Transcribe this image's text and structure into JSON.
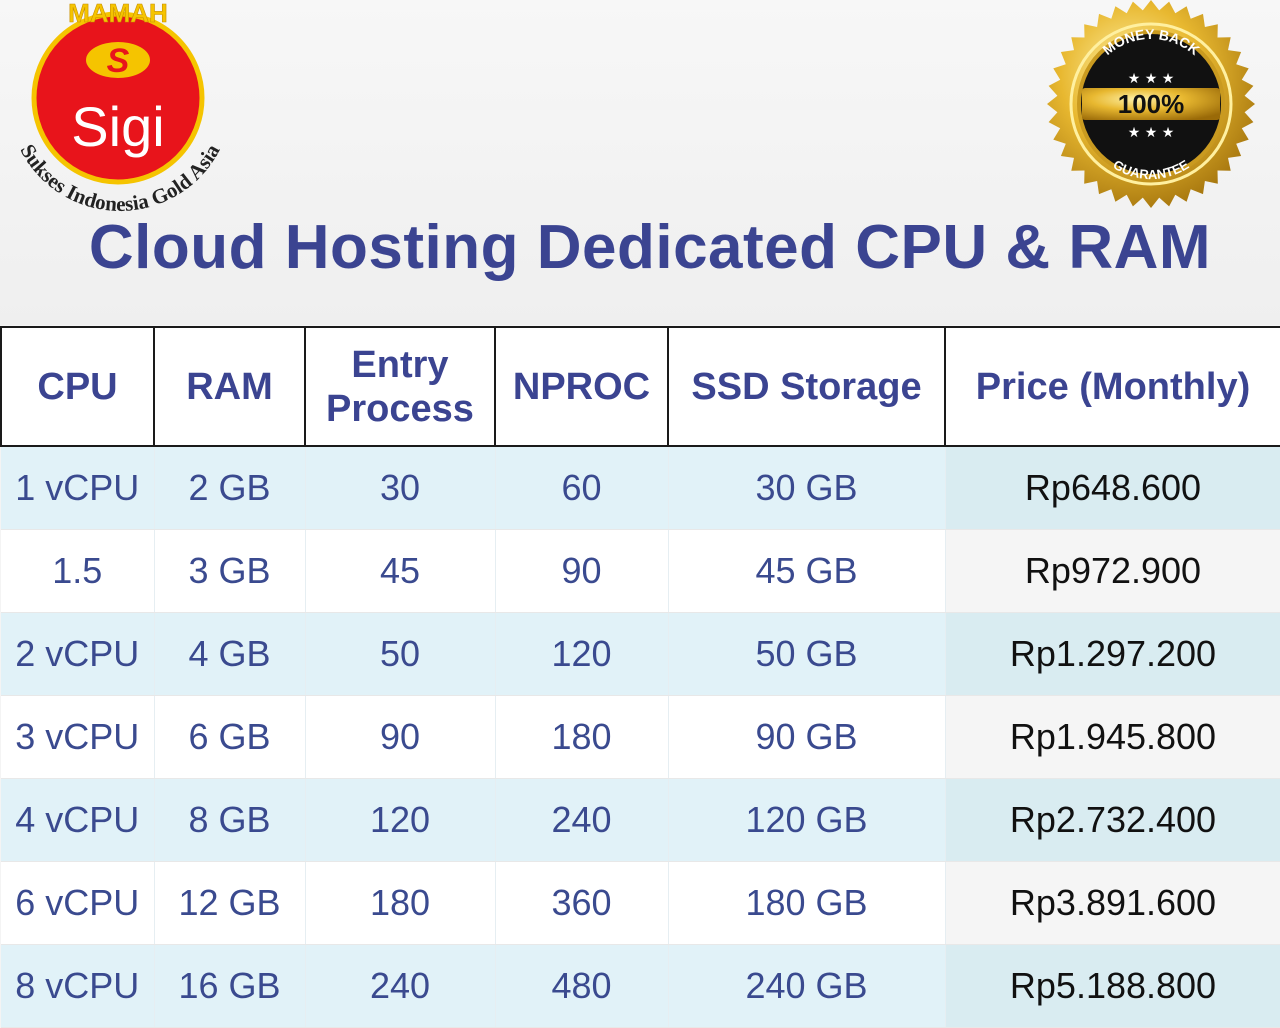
{
  "logo": {
    "top_text": "MAMAH",
    "letter": "S",
    "name": "Sigi",
    "tagline": "Sukses Indonesia Gold Asia"
  },
  "badge": {
    "top_text": "MONEY BACK",
    "percent": "100%",
    "bottom_text": "GUARANTEE"
  },
  "title": "Cloud Hosting Dedicated CPU & RAM",
  "table": {
    "headers": [
      "CPU",
      "RAM",
      "Entry Process",
      "NPROC",
      "SSD Storage",
      "Price (Monthly)"
    ],
    "rows": [
      [
        "1 vCPU",
        "2 GB",
        "30",
        "60",
        "30 GB",
        "Rp648.600"
      ],
      [
        "1.5",
        "3 GB",
        "45",
        "90",
        "45 GB",
        "Rp972.900"
      ],
      [
        "2 vCPU",
        "4 GB",
        "50",
        "120",
        "50 GB",
        "Rp1.297.200"
      ],
      [
        "3 vCPU",
        "6 GB",
        "90",
        "180",
        "90 GB",
        "Rp1.945.800"
      ],
      [
        "4 vCPU",
        "8 GB",
        "120",
        "240",
        "120 GB",
        "Rp2.732.400"
      ],
      [
        "6 vCPU",
        "12 GB",
        "180",
        "360",
        "180 GB",
        "Rp3.891.600"
      ],
      [
        "8 vCPU",
        "16 GB",
        "240",
        "480",
        "240 GB",
        "Rp5.188.800"
      ]
    ]
  },
  "colors": {
    "title": "#3b4491",
    "logo_red": "#e8141b",
    "logo_gold": "#f5c400",
    "badge_gold": "#d9a520",
    "row_tint": "#e1f2f8"
  }
}
